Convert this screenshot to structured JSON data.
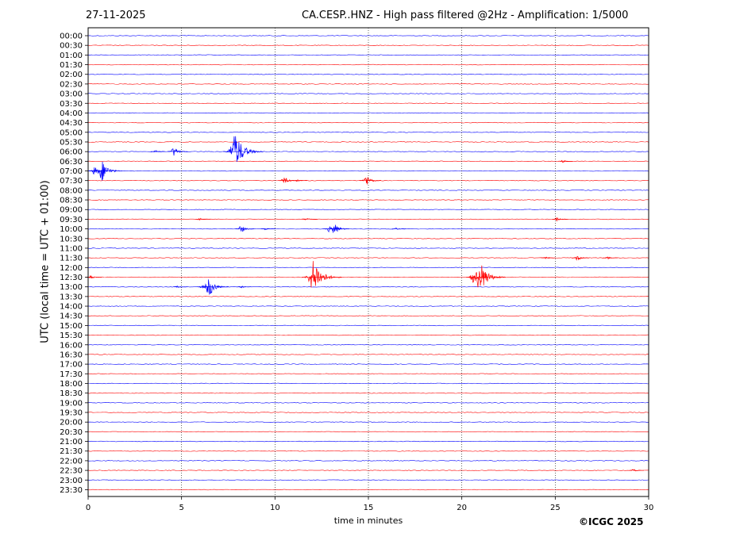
{
  "header": {
    "date": "27-11-2025",
    "title": "CA.CESP..HNZ - High pass filtered @2Hz - Amplification: 1/5000"
  },
  "footer": {
    "credit": "©ICGC 2025"
  },
  "chart_data": {
    "type": "line",
    "xlabel": "time in minutes",
    "ylabel": "UTC (local time = UTC + 01:00)",
    "xlim": [
      0,
      30
    ],
    "xticks": [
      0,
      5,
      10,
      15,
      20,
      25,
      30
    ],
    "grid": "vertical dotted at every 5 minutes",
    "series_colors": {
      "odd_rows": "#ff0000",
      "even_rows": "#0000ff"
    },
    "rows": [
      "00:00",
      "00:30",
      "01:00",
      "01:30",
      "02:00",
      "02:30",
      "03:00",
      "03:30",
      "04:00",
      "04:30",
      "05:00",
      "05:30",
      "06:00",
      "06:30",
      "07:00",
      "07:30",
      "08:00",
      "08:30",
      "09:00",
      "09:30",
      "10:00",
      "10:30",
      "11:00",
      "11:30",
      "12:00",
      "12:30",
      "13:00",
      "13:30",
      "14:00",
      "14:30",
      "15:00",
      "15:30",
      "16:00",
      "16:30",
      "17:00",
      "17:30",
      "18:00",
      "18:30",
      "19:00",
      "19:30",
      "20:00",
      "20:30",
      "21:00",
      "21:30",
      "22:00",
      "22:30",
      "23:00",
      "23:30"
    ],
    "events": [
      {
        "row": "06:00",
        "minute": 3.6,
        "amplitude": 0.15
      },
      {
        "row": "06:00",
        "minute": 4.6,
        "amplitude": 0.5
      },
      {
        "row": "06:00",
        "minute": 7.9,
        "amplitude": 1.8
      },
      {
        "row": "06:30",
        "minute": 25.4,
        "amplitude": 0.12
      },
      {
        "row": "07:00",
        "minute": 0.35,
        "amplitude": 0.45
      },
      {
        "row": "07:00",
        "minute": 0.75,
        "amplitude": 1.1
      },
      {
        "row": "07:30",
        "minute": 10.5,
        "amplitude": 0.4
      },
      {
        "row": "07:30",
        "minute": 11.2,
        "amplitude": 0.12
      },
      {
        "row": "07:30",
        "minute": 14.9,
        "amplitude": 0.6
      },
      {
        "row": "09:30",
        "minute": 6.0,
        "amplitude": 0.15
      },
      {
        "row": "09:30",
        "minute": 11.7,
        "amplitude": 0.2
      },
      {
        "row": "09:30",
        "minute": 25.1,
        "amplitude": 0.2
      },
      {
        "row": "10:00",
        "minute": 8.2,
        "amplitude": 0.4
      },
      {
        "row": "10:00",
        "minute": 9.5,
        "amplitude": 0.12
      },
      {
        "row": "10:00",
        "minute": 12.9,
        "amplitude": 0.35
      },
      {
        "row": "10:00",
        "minute": 13.2,
        "amplitude": 0.6
      },
      {
        "row": "10:00",
        "minute": 16.5,
        "amplitude": 0.1
      },
      {
        "row": "11:30",
        "minute": 24.5,
        "amplitude": 0.15
      },
      {
        "row": "11:30",
        "minute": 26.2,
        "amplitude": 0.3
      },
      {
        "row": "11:30",
        "minute": 27.8,
        "amplitude": 0.15
      },
      {
        "row": "12:30",
        "minute": 0.15,
        "amplitude": 0.2
      },
      {
        "row": "12:30",
        "minute": 12.1,
        "amplitude": 1.8
      },
      {
        "row": "12:30",
        "minute": 20.6,
        "amplitude": 0.6
      },
      {
        "row": "12:30",
        "minute": 21.0,
        "amplitude": 1.6
      },
      {
        "row": "13:00",
        "minute": 4.8,
        "amplitude": 0.12
      },
      {
        "row": "13:00",
        "minute": 6.1,
        "amplitude": 0.2
      },
      {
        "row": "13:00",
        "minute": 6.5,
        "amplitude": 1.0
      },
      {
        "row": "13:00",
        "minute": 8.2,
        "amplitude": 0.12
      },
      {
        "row": "22:30",
        "minute": 29.2,
        "amplitude": 0.15
      }
    ]
  }
}
